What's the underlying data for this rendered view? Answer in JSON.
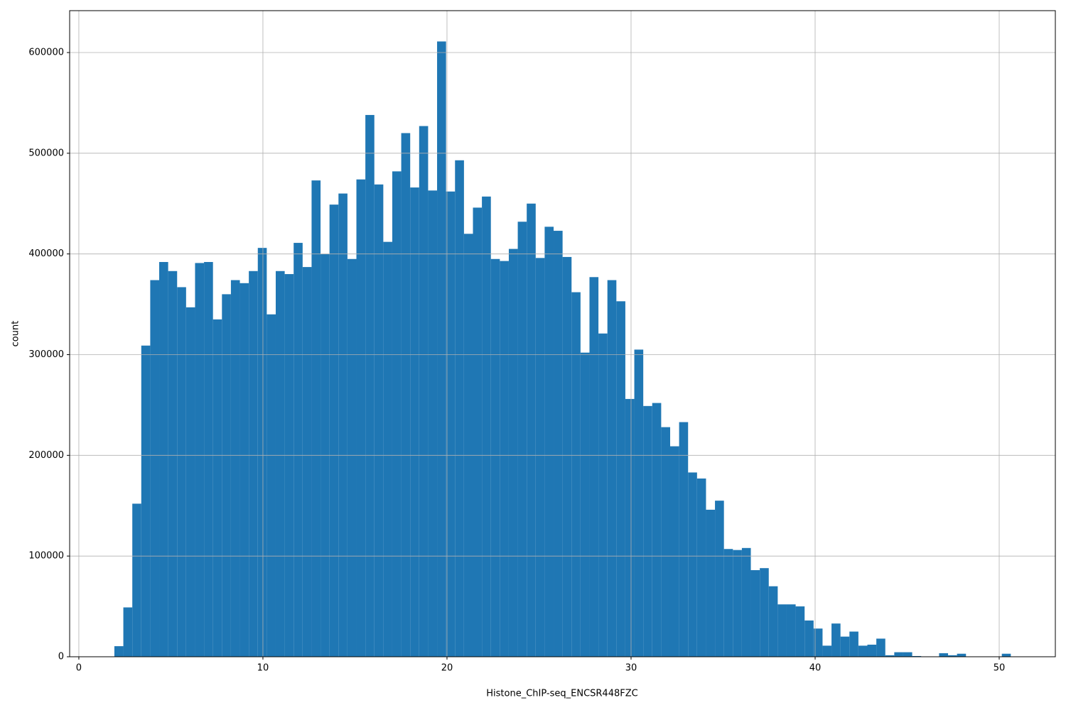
{
  "chart_data": {
    "type": "histogram",
    "xlabel": "Histone_ChIP-seq_ENCSR448FZC",
    "ylabel": "count",
    "color": "#1f77b4",
    "grid": true,
    "xlim": [
      -0.5,
      53.05
    ],
    "ylim": [
      0,
      641600
    ],
    "xticks": [
      0,
      10,
      20,
      30,
      40,
      50
    ],
    "yticks": [
      0,
      100000,
      200000,
      300000,
      400000,
      500000,
      600000
    ],
    "bins": [
      1.93,
      2.417,
      2.904,
      3.391,
      3.878,
      4.365,
      4.852,
      5.339,
      5.826,
      6.313,
      6.8,
      7.287,
      7.774,
      8.261,
      8.748,
      9.235,
      9.722,
      10.209,
      10.696,
      11.183,
      11.67,
      12.157,
      12.644,
      13.131,
      13.618,
      14.105,
      14.592,
      15.079,
      15.566,
      16.053,
      16.54,
      17.027,
      17.514,
      18.001,
      18.488,
      18.975,
      19.462,
      19.949,
      20.436,
      20.923,
      21.41,
      21.897,
      22.384,
      22.871,
      23.358,
      23.845,
      24.332,
      24.819,
      25.306,
      25.793,
      26.28,
      26.767,
      27.254,
      27.741,
      28.228,
      28.715,
      29.202,
      29.689,
      30.176,
      30.663,
      31.15,
      31.637,
      32.124,
      32.611,
      33.098,
      33.585,
      34.072,
      34.559,
      35.046,
      35.533,
      36.02,
      36.507,
      36.994,
      37.481,
      37.968,
      38.455,
      38.942,
      39.429,
      39.916,
      40.403,
      40.89,
      41.377,
      41.864,
      42.351,
      42.838,
      43.325,
      43.812,
      44.299,
      44.786,
      45.273,
      45.76,
      46.247,
      46.734,
      47.221,
      47.708,
      48.195,
      48.682,
      49.169,
      49.656,
      50.143,
      50.63
    ],
    "counts": [
      10500,
      49000,
      152000,
      309000,
      374000,
      392000,
      383000,
      367000,
      347000,
      391000,
      392000,
      335000,
      360000,
      374000,
      371000,
      383000,
      406000,
      340000,
      383000,
      380000,
      411000,
      387000,
      473000,
      400000,
      449000,
      460000,
      395000,
      474000,
      538000,
      469000,
      412000,
      482000,
      520000,
      466000,
      527000,
      463000,
      611000,
      462000,
      493000,
      420000,
      446000,
      457000,
      395000,
      393000,
      405000,
      432000,
      450000,
      396000,
      427000,
      423000,
      397000,
      362000,
      302000,
      377000,
      321000,
      374000,
      353000,
      256000,
      305000,
      249000,
      252000,
      228000,
      209000,
      233000,
      183000,
      177000,
      146000,
      155000,
      107000,
      106000,
      108000,
      86000,
      88000,
      70000,
      52000,
      52000,
      50000,
      36000,
      28000,
      11000,
      33000,
      20000,
      25000,
      11000,
      12000,
      18000,
      1500,
      4500,
      4500,
      700,
      0,
      0,
      3500,
      1500,
      3000,
      0,
      0,
      0,
      0,
      3000
    ]
  }
}
